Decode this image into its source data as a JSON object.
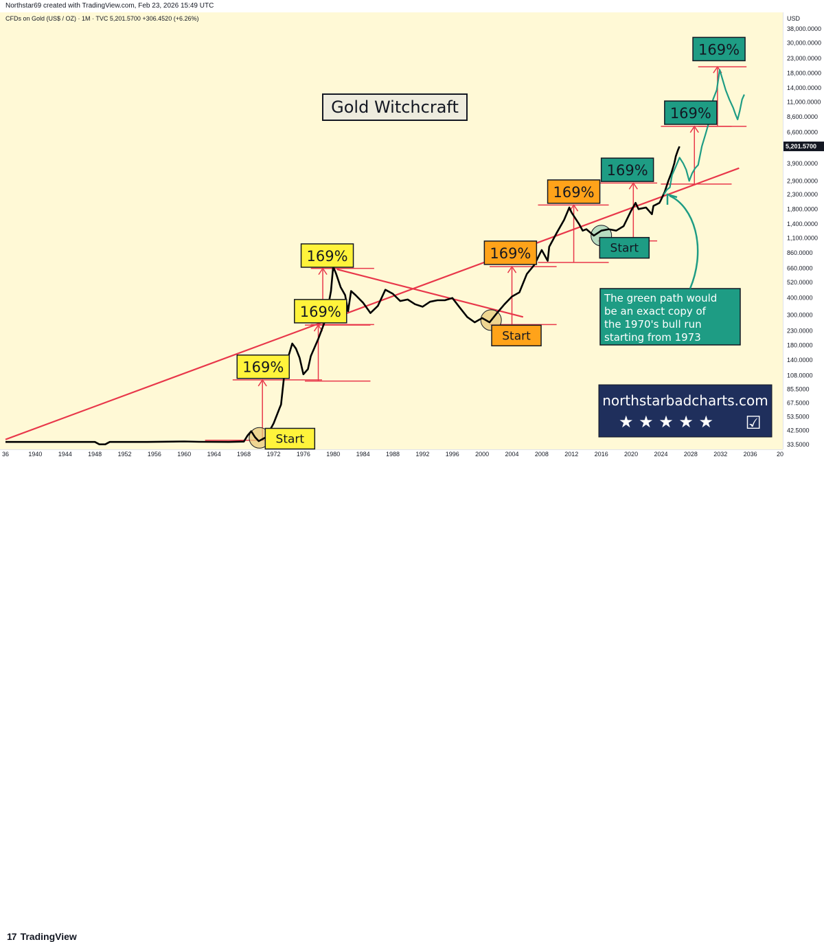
{
  "header": {
    "credit": "Northstar69 created with TradingView.com, Feb 23, 2026 15:49 UTC"
  },
  "chart_data": {
    "type": "line",
    "title": "Gold Witchcraft",
    "symbol_line": "CFDs on Gold (US$ / OZ) · 1M · TVC  5,201.5700  +306.4520 (+6.26%)",
    "currency": "USD",
    "scale": "log",
    "ylim": [
      33.5,
      38000
    ],
    "xlim": [
      1936,
      2040
    ],
    "current_price": 5201.57,
    "current_price_label": "5,201.5700",
    "y_ticks": [
      {
        "v": 38000,
        "l": "38,000.0000"
      },
      {
        "v": 30000,
        "l": "30,000.0000"
      },
      {
        "v": 23000,
        "l": "23,000.0000"
      },
      {
        "v": 18000,
        "l": "18,000.0000"
      },
      {
        "v": 14000,
        "l": "14,000.0000"
      },
      {
        "v": 11000,
        "l": "11,000.0000"
      },
      {
        "v": 8600,
        "l": "8,600.0000"
      },
      {
        "v": 6600,
        "l": "6,600.0000"
      },
      {
        "v": 3900,
        "l": "3,900.0000"
      },
      {
        "v": 2900,
        "l": "2,900.0000"
      },
      {
        "v": 2300,
        "l": "2,300.0000"
      },
      {
        "v": 1800,
        "l": "1,800.0000"
      },
      {
        "v": 1400,
        "l": "1,400.0000"
      },
      {
        "v": 1100,
        "l": "1,100.0000"
      },
      {
        "v": 860,
        "l": "860.0000"
      },
      {
        "v": 660,
        "l": "660.0000"
      },
      {
        "v": 520,
        "l": "520.0000"
      },
      {
        "v": 400,
        "l": "400.0000"
      },
      {
        "v": 300,
        "l": "300.0000"
      },
      {
        "v": 230,
        "l": "230.0000"
      },
      {
        "v": 180,
        "l": "180.0000"
      },
      {
        "v": 140,
        "l": "140.0000"
      },
      {
        "v": 108,
        "l": "108.0000"
      },
      {
        "v": 85.5,
        "l": "85.5000"
      },
      {
        "v": 67.5,
        "l": "67.5000"
      },
      {
        "v": 53.5,
        "l": "53.5000"
      },
      {
        "v": 42.5,
        "l": "42.5000"
      },
      {
        "v": 33.5,
        "l": "33.5000"
      }
    ],
    "x_ticks": [
      {
        "v": 1936,
        "l": "36"
      },
      {
        "v": 1940,
        "l": "1940"
      },
      {
        "v": 1944,
        "l": "1944"
      },
      {
        "v": 1948,
        "l": "1948"
      },
      {
        "v": 1952,
        "l": "1952"
      },
      {
        "v": 1956,
        "l": "1956"
      },
      {
        "v": 1960,
        "l": "1960"
      },
      {
        "v": 1964,
        "l": "1964"
      },
      {
        "v": 1968,
        "l": "1968"
      },
      {
        "v": 1972,
        "l": "1972"
      },
      {
        "v": 1976,
        "l": "1976"
      },
      {
        "v": 1980,
        "l": "1980"
      },
      {
        "v": 1984,
        "l": "1984"
      },
      {
        "v": 1988,
        "l": "1988"
      },
      {
        "v": 1992,
        "l": "1992"
      },
      {
        "v": 1996,
        "l": "1996"
      },
      {
        "v": 2000,
        "l": "2000"
      },
      {
        "v": 2004,
        "l": "2004"
      },
      {
        "v": 2008,
        "l": "2008"
      },
      {
        "v": 2012,
        "l": "2012"
      },
      {
        "v": 2016,
        "l": "2016"
      },
      {
        "v": 2020,
        "l": "2020"
      },
      {
        "v": 2024,
        "l": "2024"
      },
      {
        "v": 2028,
        "l": "2028"
      },
      {
        "v": 2032,
        "l": "2032"
      },
      {
        "v": 2036,
        "l": "2036"
      },
      {
        "v": 2040,
        "l": "20"
      }
    ],
    "series": [
      {
        "color": "#000000",
        "points": [
          [
            1936,
            35
          ],
          [
            1942,
            35
          ],
          [
            1948,
            35
          ],
          [
            1948.6,
            33.6
          ],
          [
            1949.4,
            33.6
          ],
          [
            1950,
            35
          ],
          [
            1955,
            35
          ],
          [
            1960,
            35.3
          ],
          [
            1962,
            35.1
          ],
          [
            1966,
            35
          ],
          [
            1968,
            35.2
          ],
          [
            1968.5,
            39
          ],
          [
            1969,
            42
          ],
          [
            1969.5,
            38
          ],
          [
            1970,
            35.5
          ],
          [
            1971,
            38
          ],
          [
            1972,
            48
          ],
          [
            1972.8,
            62
          ],
          [
            1973,
            66
          ],
          [
            1973.5,
            118
          ],
          [
            1974,
            150
          ],
          [
            1974.5,
            185
          ],
          [
            1975,
            170
          ],
          [
            1975.5,
            145
          ],
          [
            1976,
            110
          ],
          [
            1976.6,
            120
          ],
          [
            1977,
            150
          ],
          [
            1978,
            200
          ],
          [
            1979,
            280
          ],
          [
            1979.7,
            450
          ],
          [
            1980,
            680
          ],
          [
            1980.4,
            600
          ],
          [
            1981,
            480
          ],
          [
            1981.6,
            420
          ],
          [
            1982,
            320
          ],
          [
            1982.4,
            450
          ],
          [
            1983,
            420
          ],
          [
            1984,
            370
          ],
          [
            1985,
            310
          ],
          [
            1986,
            350
          ],
          [
            1987,
            460
          ],
          [
            1988,
            430
          ],
          [
            1989,
            380
          ],
          [
            1990,
            390
          ],
          [
            1991,
            360
          ],
          [
            1992,
            345
          ],
          [
            1993,
            375
          ],
          [
            1994,
            385
          ],
          [
            1995,
            385
          ],
          [
            1996,
            400
          ],
          [
            1997,
            340
          ],
          [
            1998,
            290
          ],
          [
            1999,
            265
          ],
          [
            2000,
            285
          ],
          [
            2001,
            265
          ],
          [
            2002,
            310
          ],
          [
            2003,
            360
          ],
          [
            2004,
            410
          ],
          [
            2005,
            440
          ],
          [
            2006,
            600
          ],
          [
            2007,
            700
          ],
          [
            2008,
            900
          ],
          [
            2008.8,
            750
          ],
          [
            2009,
            950
          ],
          [
            2010,
            1200
          ],
          [
            2011,
            1500
          ],
          [
            2011.7,
            1850
          ],
          [
            2012,
            1700
          ],
          [
            2013,
            1400
          ],
          [
            2013.5,
            1250
          ],
          [
            2014,
            1280
          ],
          [
            2015,
            1150
          ],
          [
            2016,
            1250
          ],
          [
            2017,
            1280
          ],
          [
            2018,
            1250
          ],
          [
            2019,
            1350
          ],
          [
            2020,
            1750
          ],
          [
            2020.6,
            2000
          ],
          [
            2021,
            1800
          ],
          [
            2022,
            1850
          ],
          [
            2022.8,
            1650
          ],
          [
            2023,
            1900
          ],
          [
            2023.8,
            2000
          ],
          [
            2024,
            2100
          ],
          [
            2024.5,
            2400
          ],
          [
            2025,
            2900
          ],
          [
            2025.4,
            3300
          ],
          [
            2025.8,
            3900
          ],
          [
            2026,
            4400
          ],
          [
            2026.3,
            4900
          ],
          [
            2026.5,
            5200
          ]
        ]
      },
      {
        "color": "#1e9c84",
        "points": [
          [
            2024.4,
            2300
          ],
          [
            2024.8,
            2500
          ],
          [
            2025.2,
            2600
          ],
          [
            2025.5,
            3200
          ],
          [
            2026,
            3700
          ],
          [
            2026.5,
            4300
          ],
          [
            2027,
            3900
          ],
          [
            2027.4,
            3500
          ],
          [
            2027.8,
            2900
          ],
          [
            2028.2,
            3300
          ],
          [
            2028.6,
            3600
          ],
          [
            2029,
            3800
          ],
          [
            2029.5,
            5200
          ],
          [
            2030,
            6400
          ],
          [
            2030.5,
            8000
          ],
          [
            2031,
            11500
          ],
          [
            2031.5,
            13500
          ],
          [
            2031.9,
            19000
          ],
          [
            2032.3,
            16000
          ],
          [
            2032.7,
            13500
          ],
          [
            2033.2,
            11500
          ],
          [
            2033.7,
            10000
          ],
          [
            2034,
            9000
          ],
          [
            2034.3,
            8200
          ],
          [
            2034.6,
            9500
          ],
          [
            2034.9,
            11500
          ],
          [
            2035.2,
            12500
          ]
        ]
      }
    ],
    "trendlines": [
      {
        "x1": 1936,
        "y1": 36.5,
        "x2": 2034.5,
        "y2": 3600
      },
      {
        "x1": 1980.5,
        "y1": 650,
        "x2": 2005.5,
        "y2": 290
      }
    ],
    "hlines": [
      {
        "x1": 1962.8,
        "x2": 1971.2,
        "y": 36
      },
      {
        "x1": 1966.5,
        "x2": 1978.5,
        "y": 100
      },
      {
        "x1": 1976.2,
        "x2": 1985,
        "y": 98
      },
      {
        "x1": 1976.2,
        "x2": 1985,
        "y": 253
      },
      {
        "x1": 1977,
        "x2": 1985.5,
        "y": 255
      },
      {
        "x1": 1977,
        "x2": 1985.5,
        "y": 660
      },
      {
        "x1": 2001,
        "x2": 2010,
        "y": 255
      },
      {
        "x1": 2001,
        "x2": 2010,
        "y": 680
      },
      {
        "x1": 2007.5,
        "x2": 2017,
        "y": 730
      },
      {
        "x1": 2007.5,
        "x2": 2017,
        "y": 1930
      },
      {
        "x1": 2015.5,
        "x2": 2023.5,
        "y": 1050
      },
      {
        "x1": 2015.5,
        "x2": 2023.5,
        "y": 2800
      },
      {
        "x1": 2024,
        "x2": 2033.5,
        "y": 2750
      },
      {
        "x1": 2024,
        "x2": 2033.5,
        "y": 7300
      },
      {
        "x1": 2029,
        "x2": 2035.5,
        "y": 7300
      },
      {
        "x1": 2029,
        "x2": 2035.5,
        "y": 20000
      }
    ],
    "arrows": [
      {
        "x": 1970.5,
        "y1": 36,
        "y2": 100
      },
      {
        "x": 1978,
        "y1": 98,
        "y2": 253
      },
      {
        "x": 1978.6,
        "y1": 255,
        "y2": 660
      },
      {
        "x": 2004,
        "y1": 255,
        "y2": 680
      },
      {
        "x": 2012.3,
        "y1": 730,
        "y2": 1930
      },
      {
        "x": 2020.3,
        "y1": 1050,
        "y2": 2800
      },
      {
        "x": 2028.5,
        "y1": 2750,
        "y2": 7300
      },
      {
        "x": 2031.6,
        "y1": 7300,
        "y2": 20000
      }
    ],
    "circles": [
      {
        "x": 1970.1,
        "y": 37.5,
        "fill": "#e8c97a"
      },
      {
        "x": 2001.2,
        "y": 275,
        "fill": "#e8c97a"
      },
      {
        "x": 2016,
        "y": 1150,
        "fill": "#9fd0b8"
      }
    ],
    "labels": [
      {
        "text": "169%",
        "x": 1970.6,
        "y": 125,
        "bg": "#fff33b"
      },
      {
        "text": "169%",
        "x": 1978.3,
        "y": 320,
        "bg": "#fff33b"
      },
      {
        "text": "169%",
        "x": 1979.2,
        "y": 820,
        "bg": "#fff33b"
      },
      {
        "text": "169%",
        "x": 2003.8,
        "y": 860,
        "bg": "#ffa31a"
      },
      {
        "text": "169%",
        "x": 2012.3,
        "y": 2420,
        "bg": "#ffa31a"
      },
      {
        "text": "169%",
        "x": 2019.5,
        "y": 3500,
        "bg": "#1e9c84"
      },
      {
        "text": "169%",
        "x": 2028,
        "y": 9200,
        "bg": "#1e9c84"
      },
      {
        "text": "169%",
        "x": 2031.8,
        "y": 27000,
        "bg": "#1e9c84"
      }
    ],
    "start_labels": [
      {
        "text": "Start",
        "x": 1974.2,
        "y": 37,
        "bg": "#fff33b"
      },
      {
        "text": "Start",
        "x": 2004.6,
        "y": 212,
        "bg": "#ffa31a"
      },
      {
        "text": "Start",
        "x": 2019.1,
        "y": 935,
        "bg": "#1e9c84"
      }
    ],
    "annotation": {
      "lines": [
        "The green path would",
        "be an exact copy of",
        "the 1970's bull run",
        "starting from 1973"
      ],
      "bg": "#1e9c84"
    },
    "watermark": {
      "text": "northstarbadcharts.com",
      "stars": "★ ★ ★ ★ ★",
      "check": "☑",
      "bg": "#1f2f5c"
    },
    "colors": {
      "background": "#fff9d6",
      "trend": "#e8374a",
      "price_line": "#000000",
      "projection": "#1e9c84"
    }
  },
  "footer": {
    "logo_mark": "17",
    "brand": "TradingView"
  }
}
